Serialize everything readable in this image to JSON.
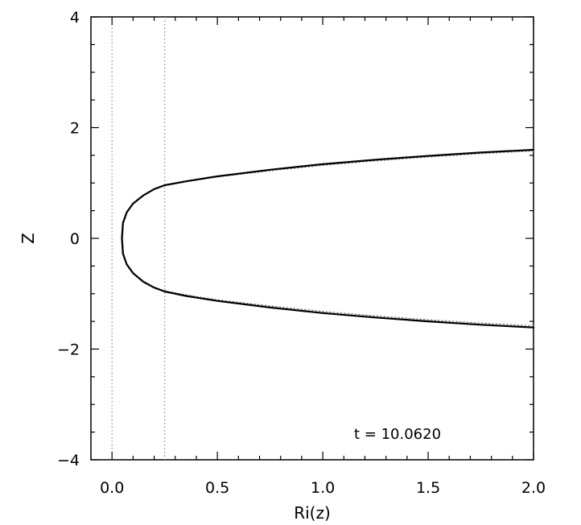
{
  "chart_data": {
    "type": "line",
    "xlabel": "Ri(z)",
    "ylabel": "Z",
    "xlim": [
      -0.1,
      2.0
    ],
    "ylim": [
      -4,
      4
    ],
    "xticks": [
      0.0,
      0.5,
      1.0,
      1.5,
      2.0
    ],
    "xtick_labels": [
      "0.0",
      "0.5",
      "1.0",
      "1.5",
      "2.0"
    ],
    "yticks": [
      -4,
      -2,
      0,
      2,
      4
    ],
    "ytick_labels": [
      "−4",
      "−2",
      "0",
      "2",
      "4"
    ],
    "reference_lines_x": [
      0.0,
      0.25
    ],
    "annotation": "t  =  10.0620",
    "grid": false,
    "series": [
      {
        "style": "solid",
        "color": "#000000",
        "points": [
          [
            2.0,
            1.6
          ],
          [
            1.75,
            1.55
          ],
          [
            1.5,
            1.49
          ],
          [
            1.25,
            1.42
          ],
          [
            1.0,
            1.34
          ],
          [
            0.75,
            1.24
          ],
          [
            0.5,
            1.12
          ],
          [
            0.35,
            1.03
          ],
          [
            0.25,
            0.96
          ],
          [
            0.2,
            0.89
          ],
          [
            0.15,
            0.78
          ],
          [
            0.1,
            0.63
          ],
          [
            0.07,
            0.47
          ],
          [
            0.052,
            0.28
          ],
          [
            0.047,
            0.0
          ],
          [
            0.052,
            -0.28
          ],
          [
            0.07,
            -0.47
          ],
          [
            0.1,
            -0.63
          ],
          [
            0.15,
            -0.79
          ],
          [
            0.2,
            -0.89
          ],
          [
            0.25,
            -0.96
          ],
          [
            0.35,
            -1.04
          ],
          [
            0.5,
            -1.13
          ],
          [
            0.75,
            -1.25
          ],
          [
            1.0,
            -1.35
          ],
          [
            1.25,
            -1.43
          ],
          [
            1.5,
            -1.5
          ],
          [
            1.75,
            -1.56
          ],
          [
            2.0,
            -1.61
          ]
        ]
      },
      {
        "style": "dotted",
        "color": "#888888",
        "points": [
          [
            2.0,
            1.58
          ],
          [
            1.75,
            1.53
          ],
          [
            1.5,
            1.47
          ],
          [
            1.25,
            1.4
          ],
          [
            1.0,
            1.32
          ],
          [
            0.75,
            1.22
          ],
          [
            0.5,
            1.11
          ],
          [
            0.35,
            1.02
          ],
          [
            0.25,
            0.95
          ],
          [
            0.2,
            0.88
          ],
          [
            0.15,
            0.77
          ],
          [
            0.1,
            0.62
          ],
          [
            0.07,
            0.46
          ],
          [
            0.055,
            0.27
          ],
          [
            0.05,
            0.0
          ],
          [
            0.055,
            -0.27
          ],
          [
            0.07,
            -0.46
          ],
          [
            0.1,
            -0.62
          ],
          [
            0.15,
            -0.77
          ],
          [
            0.2,
            -0.88
          ],
          [
            0.25,
            -0.95
          ],
          [
            0.35,
            -1.02
          ],
          [
            0.5,
            -1.11
          ],
          [
            0.75,
            -1.22
          ],
          [
            1.0,
            -1.32
          ],
          [
            1.25,
            -1.4
          ],
          [
            1.5,
            -1.47
          ],
          [
            1.75,
            -1.53
          ],
          [
            2.0,
            -1.58
          ]
        ]
      }
    ]
  }
}
